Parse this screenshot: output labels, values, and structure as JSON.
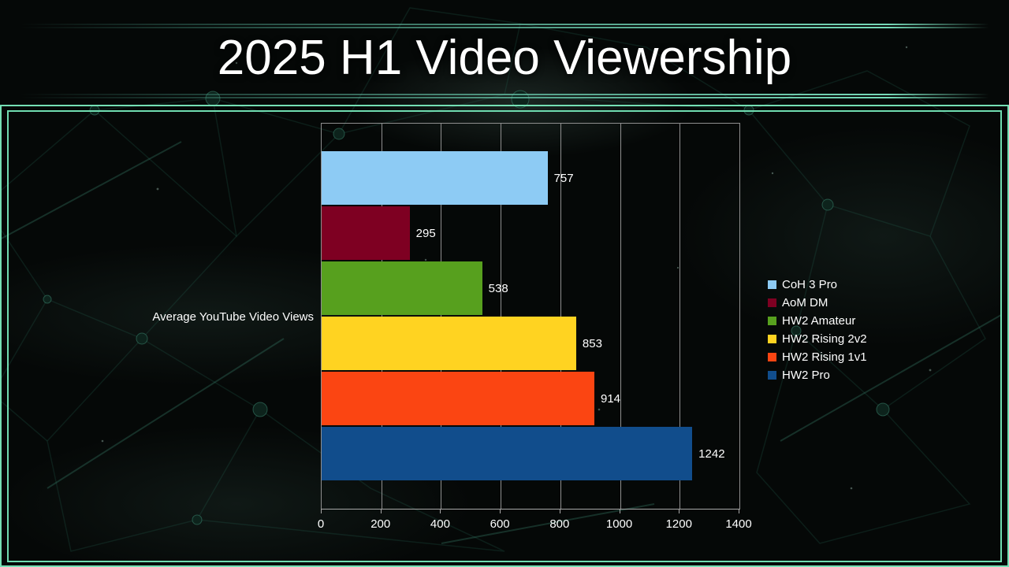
{
  "page": {
    "title": "2025 H1 Video Viewership"
  },
  "colors": {
    "background": "#050807",
    "frame_accent": "#74dfb4",
    "gridline": "#8f8f8f",
    "text": "#ffffff"
  },
  "chart_data": {
    "type": "bar",
    "orientation": "horizontal",
    "title": "2025 H1 Video Viewership",
    "axis_title": "Average YouTube Video Views",
    "xlim": [
      0,
      1400
    ],
    "x_ticks": [
      0,
      200,
      400,
      600,
      800,
      1000,
      1200,
      1400
    ],
    "grid": true,
    "legend_position": "right",
    "series": [
      {
        "name": "CoH 3 Pro",
        "value": 757,
        "color": "#8DCBF4",
        "value_label": "757"
      },
      {
        "name": "AoM DM",
        "value": 295,
        "color": "#7E0022",
        "value_label": "295"
      },
      {
        "name": "HW2 Amateur",
        "value": 538,
        "color": "#57A01E",
        "value_label": "538"
      },
      {
        "name": "HW2 Rising 2v2",
        "value": 853,
        "color": "#FFD321",
        "value_label": "853"
      },
      {
        "name": "HW2 Rising 1v1",
        "value": 914,
        "color": "#FB4512",
        "value_label": "914"
      },
      {
        "name": "HW2 Pro",
        "value": 1242,
        "color": "#114D8C",
        "value_label": "1242"
      }
    ]
  }
}
